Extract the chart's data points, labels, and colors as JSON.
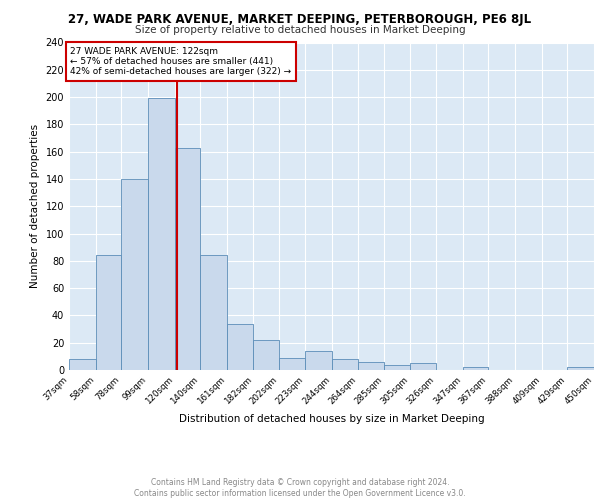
{
  "title1": "27, WADE PARK AVENUE, MARKET DEEPING, PETERBOROUGH, PE6 8JL",
  "title2": "Size of property relative to detached houses in Market Deeping",
  "xlabel": "Distribution of detached houses by size in Market Deeping",
  "ylabel": "Number of detached properties",
  "footnote1": "Contains HM Land Registry data © Crown copyright and database right 2024.",
  "footnote2": "Contains public sector information licensed under the Open Government Licence v3.0.",
  "bin_labels": [
    "37sqm",
    "58sqm",
    "78sqm",
    "99sqm",
    "120sqm",
    "140sqm",
    "161sqm",
    "182sqm",
    "202sqm",
    "223sqm",
    "244sqm",
    "264sqm",
    "285sqm",
    "305sqm",
    "326sqm",
    "347sqm",
    "367sqm",
    "388sqm",
    "409sqm",
    "429sqm",
    "450sqm"
  ],
  "bar_heights": [
    8,
    84,
    140,
    199,
    163,
    84,
    34,
    22,
    9,
    14,
    8,
    6,
    4,
    5,
    0,
    2,
    0,
    0,
    0,
    2,
    0
  ],
  "bar_color": "#c9d9ec",
  "bar_edge_color": "#5b8db8",
  "ylim": [
    0,
    240
  ],
  "yticks": [
    0,
    20,
    40,
    60,
    80,
    100,
    120,
    140,
    160,
    180,
    200,
    220,
    240
  ],
  "property_size": 122,
  "property_label": "27 WADE PARK AVENUE: 122sqm",
  "annotation_line1": "← 57% of detached houses are smaller (441)",
  "annotation_line2": "42% of semi-detached houses are larger (322) →",
  "vline_color": "#cc0000",
  "annotation_box_color": "#ffffff",
  "annotation_box_edgecolor": "#cc0000",
  "bin_edges": [
    37,
    58,
    78,
    99,
    120,
    140,
    161,
    182,
    202,
    223,
    244,
    264,
    285,
    305,
    326,
    347,
    367,
    388,
    409,
    429,
    450
  ],
  "background_color": "#dce9f5",
  "grid_color": "#ffffff"
}
